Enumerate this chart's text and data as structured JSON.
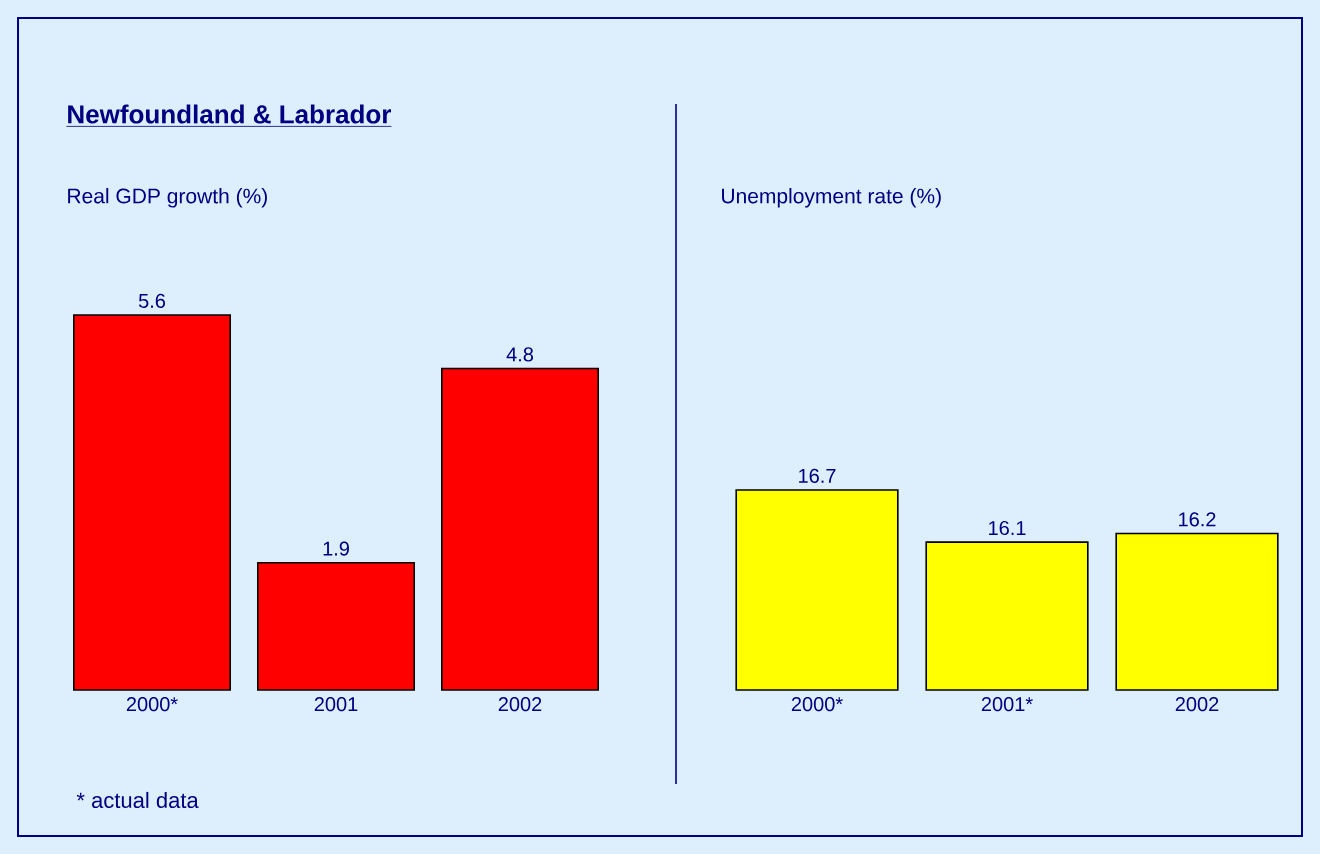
{
  "chart_data": [
    {
      "type": "bar",
      "title": "Newfoundland & Labrador",
      "subtitle": "Real GDP growth (%)",
      "categories": [
        "2000*",
        "2001",
        "2002"
      ],
      "values": [
        5.6,
        1.9,
        4.8
      ],
      "color": "#ff0000",
      "data_labels": true,
      "annotations": [
        "* actual data"
      ]
    },
    {
      "type": "bar",
      "subtitle": "Unemployment rate (%)",
      "categories": [
        "2000*",
        "2001*",
        "2002"
      ],
      "values": [
        16.7,
        16.1,
        16.2
      ],
      "color": "#ffff00",
      "ylim": [
        14.4,
        16.7
      ],
      "data_labels": true
    }
  ]
}
